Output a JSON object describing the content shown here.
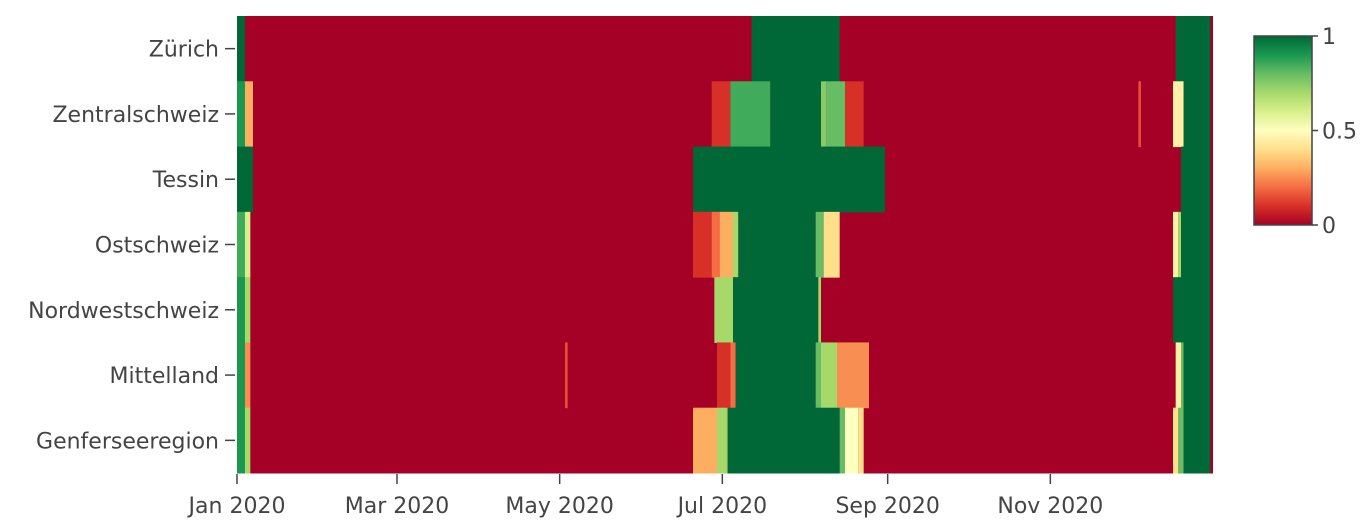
{
  "chart_data": {
    "type": "heatmap",
    "title": "",
    "xlabel": "",
    "ylabel": "",
    "x_range": [
      "2020-01-01",
      "2020-12-31"
    ],
    "x_ticks": [
      {
        "date": "2020-01-01",
        "label": "Jan 2020"
      },
      {
        "date": "2020-03-01",
        "label": "Mar 2020"
      },
      {
        "date": "2020-05-01",
        "label": "May 2020"
      },
      {
        "date": "2020-07-01",
        "label": "Jul 2020"
      },
      {
        "date": "2020-09-01",
        "label": "Sep 2020"
      },
      {
        "date": "2020-11-01",
        "label": "Nov 2020"
      }
    ],
    "regions": [
      "Zürich",
      "Zentralschweiz",
      "Tessin",
      "Ostschweiz",
      "Nordwestschweiz",
      "Mittelland",
      "Genferseeregion"
    ],
    "z_range": [
      0,
      1
    ],
    "colorbar": {
      "ticks": [
        {
          "value": 0,
          "label": "0"
        },
        {
          "value": 0.5,
          "label": "0.5"
        },
        {
          "value": 1,
          "label": "1"
        }
      ],
      "colorscale": [
        [
          0,
          "#a50026"
        ],
        [
          0.1,
          "#d73027"
        ],
        [
          0.2,
          "#f46d43"
        ],
        [
          0.3,
          "#fdae61"
        ],
        [
          0.4,
          "#fee08b"
        ],
        [
          0.5,
          "#ffffbf"
        ],
        [
          0.6,
          "#d9ef8b"
        ],
        [
          0.7,
          "#a6d96a"
        ],
        [
          0.8,
          "#66bd63"
        ],
        [
          0.9,
          "#1a9850"
        ],
        [
          1,
          "#006837"
        ]
      ]
    },
    "baseline_value": 0,
    "segments": [
      {
        "region": "Zürich",
        "start": "2020-01-01",
        "end": "2020-01-04",
        "value": 1
      },
      {
        "region": "Zürich",
        "start": "2020-07-12",
        "end": "2020-08-14",
        "value": 1
      },
      {
        "region": "Zürich",
        "start": "2020-12-18",
        "end": "2020-12-31",
        "value": 1
      },
      {
        "region": "Zentralschweiz",
        "start": "2020-01-01",
        "end": "2020-01-04",
        "value": 0.9
      },
      {
        "region": "Zentralschweiz",
        "start": "2020-01-04",
        "end": "2020-01-07",
        "value": 0.3
      },
      {
        "region": "Zentralschweiz",
        "start": "2020-06-27",
        "end": "2020-07-04",
        "value": 0.1
      },
      {
        "region": "Zentralschweiz",
        "start": "2020-07-04",
        "end": "2020-07-19",
        "value": 0.85
      },
      {
        "region": "Zentralschweiz",
        "start": "2020-07-19",
        "end": "2020-08-07",
        "value": 1
      },
      {
        "region": "Zentralschweiz",
        "start": "2020-08-07",
        "end": "2020-08-09",
        "value": 0.75
      },
      {
        "region": "Zentralschweiz",
        "start": "2020-08-09",
        "end": "2020-08-16",
        "value": 0.8
      },
      {
        "region": "Zentralschweiz",
        "start": "2020-08-16",
        "end": "2020-08-23",
        "value": 0.1
      },
      {
        "region": "Zentralschweiz",
        "start": "2020-12-04",
        "end": "2020-12-05",
        "value": 0.15
      },
      {
        "region": "Zentralschweiz",
        "start": "2020-12-17",
        "end": "2020-12-21",
        "value": 0.45
      },
      {
        "region": "Zentralschweiz",
        "start": "2020-12-21",
        "end": "2020-12-31",
        "value": 1
      },
      {
        "region": "Tessin",
        "start": "2020-01-01",
        "end": "2020-01-07",
        "value": 1
      },
      {
        "region": "Tessin",
        "start": "2020-06-20",
        "end": "2020-08-31",
        "value": 1
      },
      {
        "region": "Tessin",
        "start": "2020-12-20",
        "end": "2020-12-31",
        "value": 1
      },
      {
        "region": "Ostschweiz",
        "start": "2020-01-01",
        "end": "2020-01-04",
        "value": 0.85
      },
      {
        "region": "Ostschweiz",
        "start": "2020-01-04",
        "end": "2020-01-06",
        "value": 0.6
      },
      {
        "region": "Ostschweiz",
        "start": "2020-06-20",
        "end": "2020-06-27",
        "value": 0.1
      },
      {
        "region": "Ostschweiz",
        "start": "2020-06-27",
        "end": "2020-06-30",
        "value": 0.2
      },
      {
        "region": "Ostschweiz",
        "start": "2020-06-30",
        "end": "2020-07-05",
        "value": 0.3
      },
      {
        "region": "Ostschweiz",
        "start": "2020-07-05",
        "end": "2020-07-07",
        "value": 0.7
      },
      {
        "region": "Ostschweiz",
        "start": "2020-07-07",
        "end": "2020-08-05",
        "value": 1
      },
      {
        "region": "Ostschweiz",
        "start": "2020-08-05",
        "end": "2020-08-08",
        "value": 0.8
      },
      {
        "region": "Ostschweiz",
        "start": "2020-08-08",
        "end": "2020-08-14",
        "value": 0.4
      },
      {
        "region": "Ostschweiz",
        "start": "2020-12-17",
        "end": "2020-12-19",
        "value": 0.45
      },
      {
        "region": "Ostschweiz",
        "start": "2020-12-19",
        "end": "2020-12-20",
        "value": 0.7
      },
      {
        "region": "Ostschweiz",
        "start": "2020-12-20",
        "end": "2020-12-31",
        "value": 1
      },
      {
        "region": "Nordwestschweiz",
        "start": "2020-01-01",
        "end": "2020-01-04",
        "value": 0.9
      },
      {
        "region": "Nordwestschweiz",
        "start": "2020-01-04",
        "end": "2020-01-06",
        "value": 0.7
      },
      {
        "region": "Nordwestschweiz",
        "start": "2020-06-28",
        "end": "2020-07-05",
        "value": 0.7
      },
      {
        "region": "Nordwestschweiz",
        "start": "2020-07-05",
        "end": "2020-08-06",
        "value": 1
      },
      {
        "region": "Nordwestschweiz",
        "start": "2020-08-06",
        "end": "2020-08-07",
        "value": 0.7
      },
      {
        "region": "Nordwestschweiz",
        "start": "2020-12-17",
        "end": "2020-12-31",
        "value": 1
      },
      {
        "region": "Mittelland",
        "start": "2020-01-01",
        "end": "2020-01-04",
        "value": 0.9
      },
      {
        "region": "Mittelland",
        "start": "2020-01-04",
        "end": "2020-01-06",
        "value": 0.25
      },
      {
        "region": "Mittelland",
        "start": "2020-05-03",
        "end": "2020-05-04",
        "value": 0.15
      },
      {
        "region": "Mittelland",
        "start": "2020-06-29",
        "end": "2020-07-04",
        "value": 0.1
      },
      {
        "region": "Mittelland",
        "start": "2020-07-04",
        "end": "2020-07-06",
        "value": 0.2
      },
      {
        "region": "Mittelland",
        "start": "2020-07-06",
        "end": "2020-08-05",
        "value": 1
      },
      {
        "region": "Mittelland",
        "start": "2020-08-05",
        "end": "2020-08-07",
        "value": 0.8
      },
      {
        "region": "Mittelland",
        "start": "2020-08-07",
        "end": "2020-08-13",
        "value": 0.7
      },
      {
        "region": "Mittelland",
        "start": "2020-08-13",
        "end": "2020-08-25",
        "value": 0.25
      },
      {
        "region": "Mittelland",
        "start": "2020-12-18",
        "end": "2020-12-20",
        "value": 0.45
      },
      {
        "region": "Mittelland",
        "start": "2020-12-20",
        "end": "2020-12-21",
        "value": 0.8
      },
      {
        "region": "Mittelland",
        "start": "2020-12-21",
        "end": "2020-12-31",
        "value": 1
      },
      {
        "region": "Genferseeregion",
        "start": "2020-01-01",
        "end": "2020-01-04",
        "value": 0.9
      },
      {
        "region": "Genferseeregion",
        "start": "2020-01-04",
        "end": "2020-01-06",
        "value": 0.7
      },
      {
        "region": "Genferseeregion",
        "start": "2020-06-20",
        "end": "2020-06-29",
        "value": 0.3
      },
      {
        "region": "Genferseeregion",
        "start": "2020-06-29",
        "end": "2020-07-03",
        "value": 0.7
      },
      {
        "region": "Genferseeregion",
        "start": "2020-07-03",
        "end": "2020-08-14",
        "value": 1
      },
      {
        "region": "Genferseeregion",
        "start": "2020-08-14",
        "end": "2020-08-16",
        "value": 0.8
      },
      {
        "region": "Genferseeregion",
        "start": "2020-08-16",
        "end": "2020-08-21",
        "value": 0.5
      },
      {
        "region": "Genferseeregion",
        "start": "2020-08-21",
        "end": "2020-08-23",
        "value": 0.4
      },
      {
        "region": "Genferseeregion",
        "start": "2020-12-17",
        "end": "2020-12-19",
        "value": 0.4
      },
      {
        "region": "Genferseeregion",
        "start": "2020-12-19",
        "end": "2020-12-21",
        "value": 0.8
      },
      {
        "region": "Genferseeregion",
        "start": "2020-12-21",
        "end": "2020-12-31",
        "value": 1
      }
    ]
  }
}
